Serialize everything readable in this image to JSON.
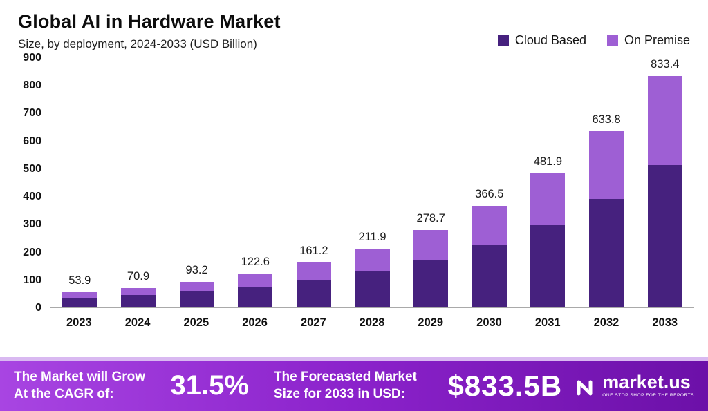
{
  "header": {
    "title": "Global AI in Hardware Market",
    "subtitle": "Size, by deployment, 2024-2033 (USD Billion)"
  },
  "legend": [
    {
      "label": "Cloud Based",
      "color": "#46217e"
    },
    {
      "label": "On Premise",
      "color": "#9e5fd4"
    }
  ],
  "chart_data": {
    "type": "bar",
    "stacked": true,
    "title": "Global AI in Hardware Market",
    "subtitle": "Size, by deployment, 2024-2033 (USD Billion)",
    "xlabel": "",
    "ylabel": "",
    "ylim": [
      0,
      900
    ],
    "yticks": [
      0,
      100,
      200,
      300,
      400,
      500,
      600,
      700,
      800,
      900
    ],
    "grid": false,
    "legend_position": "top-right",
    "categories": [
      "2023",
      "2024",
      "2025",
      "2026",
      "2027",
      "2028",
      "2029",
      "2030",
      "2031",
      "2032",
      "2033"
    ],
    "series": [
      {
        "name": "Cloud Based",
        "color": "#46217e",
        "values": [
          33.1,
          43.6,
          57.3,
          75.4,
          99.1,
          130.3,
          171.4,
          225.4,
          296.4,
          389.8,
          512.5
        ]
      },
      {
        "name": "On Premise",
        "color": "#9e5fd4",
        "values": [
          20.8,
          27.3,
          35.9,
          47.2,
          62.1,
          81.6,
          107.3,
          141.1,
          185.5,
          244.0,
          320.9
        ]
      }
    ],
    "totals": [
      53.9,
      70.9,
      93.2,
      122.6,
      161.2,
      211.9,
      278.7,
      366.5,
      481.9,
      633.8,
      833.4
    ]
  },
  "footer": {
    "cagr_label": "The Market will Grow At the CAGR of:",
    "cagr_value": "31.5%",
    "forecast_label": "The Forecasted Market Size for 2033 in USD:",
    "forecast_value": "$833.5B",
    "brand": "market.us",
    "brand_tagline": "ONE STOP SHOP FOR THE REPORTS"
  }
}
